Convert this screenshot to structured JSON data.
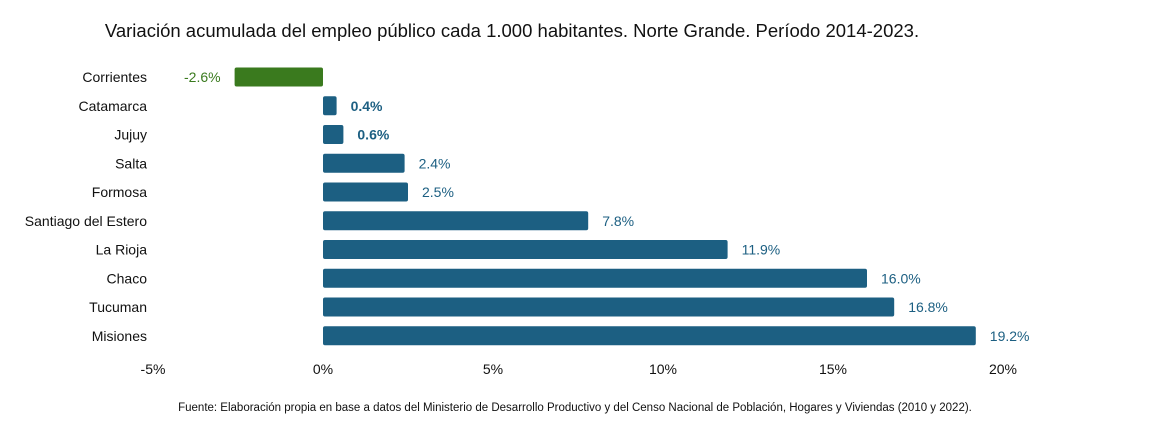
{
  "chart_data": {
    "type": "bar",
    "orientation": "horizontal",
    "title": "Variación acumulada del empleo público cada 1.000 habitantes. Norte Grande. Período 2014-2023.",
    "source": "Fuente: Elaboración propia en base a datos del Ministerio de Desarrollo Productivo y del Censo Nacional de Población, Hogares y Viviendas (2010 y 2022).",
    "categories": [
      "Corrientes",
      "Catamarca",
      "Jujuy",
      "Salta",
      "Formosa",
      "Santiago del Estero",
      "La Rioja",
      "Chaco",
      "Tucuman",
      "Misiones"
    ],
    "values": [
      -2.6,
      0.4,
      0.6,
      2.4,
      2.5,
      7.8,
      11.9,
      16.0,
      16.8,
      19.2
    ],
    "value_labels": [
      "-2.6%",
      "0.4%",
      "0.6%",
      "2.4%",
      "2.5%",
      "7.8%",
      "11.9%",
      "16.0%",
      "16.8%",
      "19.2%"
    ],
    "bold_labels": [
      "Catamarca",
      "Jujuy"
    ],
    "xlim": [
      -5,
      20
    ],
    "xticks": [
      -5,
      0,
      5,
      10,
      15,
      20
    ],
    "xtick_labels": [
      "-5%",
      "0%",
      "5%",
      "10%",
      "15%",
      "20%"
    ],
    "colors": {
      "positive": "#1c5f82",
      "negative": "#3a7a1e"
    },
    "grid": false,
    "xlabel": "",
    "ylabel": ""
  }
}
